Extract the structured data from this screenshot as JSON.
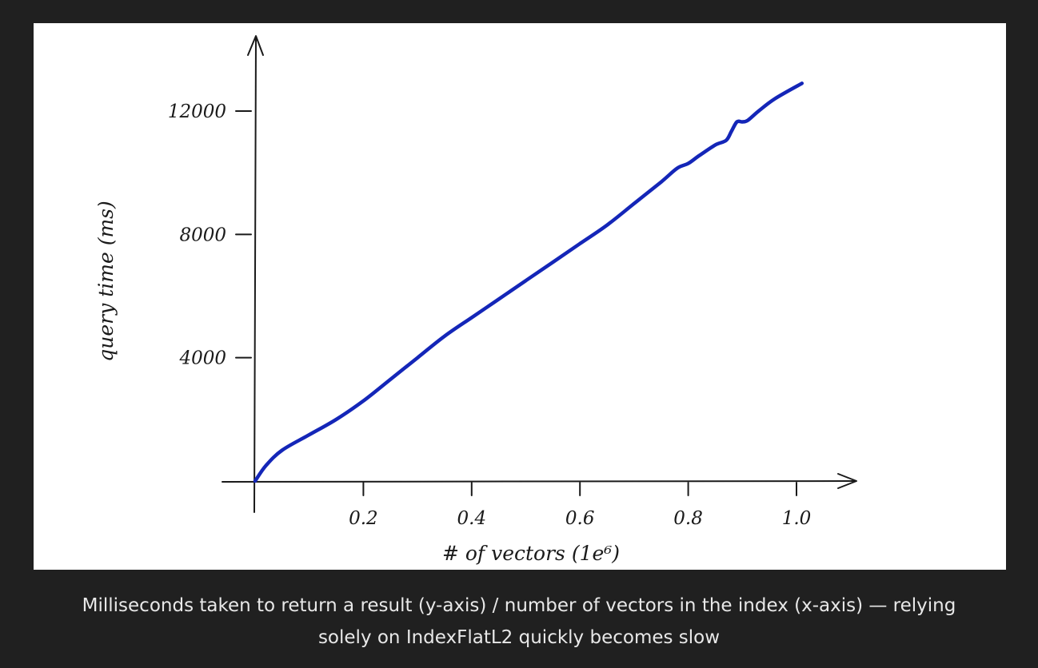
{
  "colors": {
    "background": "#202020",
    "figure_bg": "#ffffff",
    "line": "#1426b8",
    "axis": "#1a1a1a",
    "caption_text": "#e8e8e8"
  },
  "caption": {
    "line1": "Milliseconds taken to return a result (y-axis) / number of vectors in the index (x-axis) — relying",
    "line2": "solely on IndexFlatL2 quickly becomes slow"
  },
  "chart_data": {
    "type": "line",
    "title": "",
    "xlabel": "# of vectors (1e⁶)",
    "ylabel": "query time (ms)",
    "xlim": [
      0,
      1.05
    ],
    "ylim": [
      0,
      12900
    ],
    "xticks": [
      0.2,
      0.4,
      0.6,
      0.8,
      1.0
    ],
    "xtick_labels": [
      "0.2",
      "0.4",
      "0.6",
      "0.8",
      "1.0"
    ],
    "yticks": [
      4000,
      8000,
      12000
    ],
    "ytick_labels": [
      "4000",
      "8000",
      "12000"
    ],
    "grid": false,
    "legend": "none",
    "series": [
      {
        "x": [
          0.0,
          0.02,
          0.05,
          0.1,
          0.15,
          0.2,
          0.25,
          0.3,
          0.35,
          0.4,
          0.45,
          0.5,
          0.55,
          0.6,
          0.65,
          0.7,
          0.75,
          0.78,
          0.8,
          0.82,
          0.85,
          0.87,
          0.88,
          0.89,
          0.9,
          0.91,
          0.93,
          0.96,
          1.01
        ],
        "y": [
          0,
          500,
          1000,
          1500,
          2000,
          2600,
          3300,
          4000,
          4700,
          5300,
          5900,
          6500,
          7100,
          7700,
          8300,
          9000,
          9700,
          10150,
          10300,
          10550,
          10900,
          11050,
          11350,
          11650,
          11650,
          11700,
          12000,
          12400,
          12900
        ]
      }
    ]
  }
}
